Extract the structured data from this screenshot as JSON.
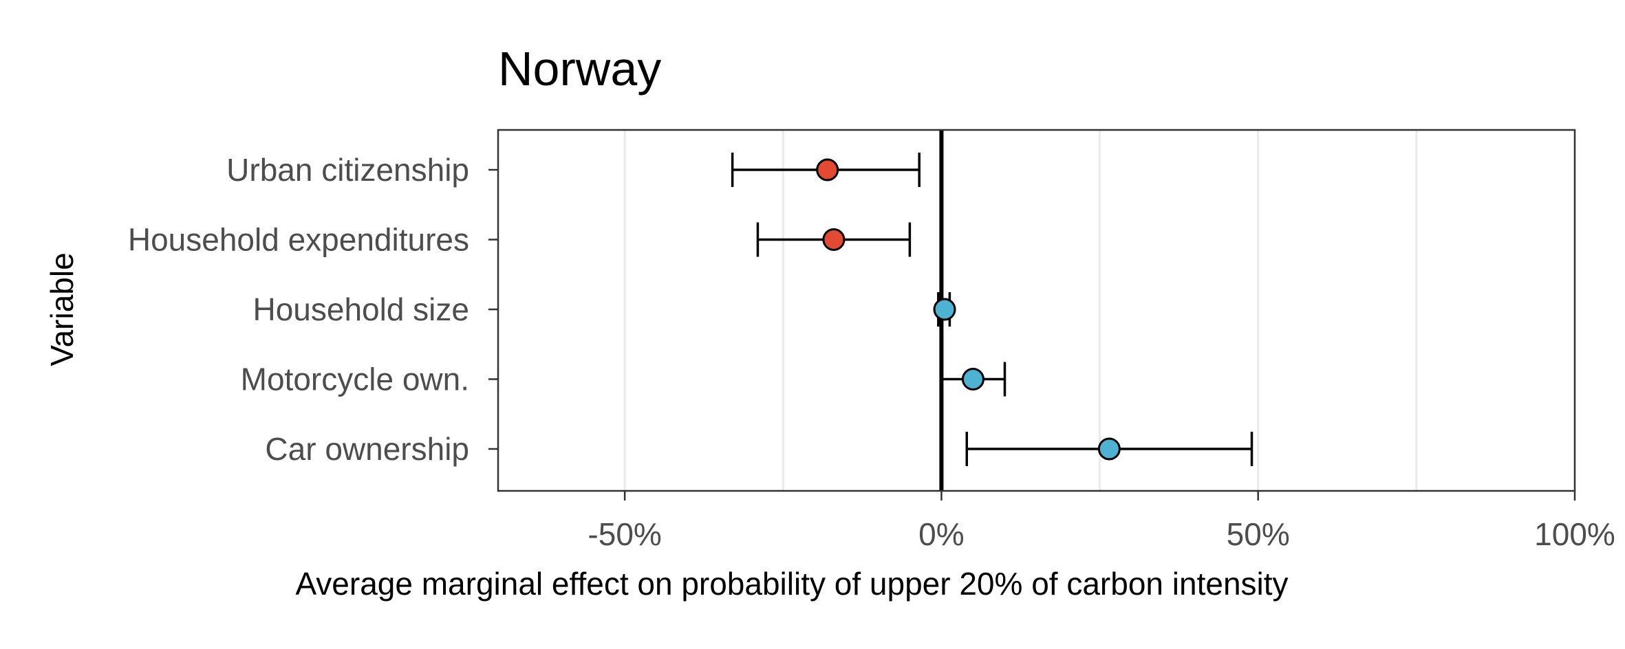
{
  "chart_data": {
    "type": "errorbar",
    "title": "Norway",
    "xlabel": "Average marginal effect on probability of upper 20% of carbon intensity",
    "ylabel": "Variable",
    "xlim": [
      -70,
      100
    ],
    "x_ticks": [
      -50,
      0,
      50,
      100
    ],
    "x_tick_labels": [
      "-50%",
      "0%",
      "50%",
      "100%"
    ],
    "x_minor_gridlines": [
      -25,
      25,
      75
    ],
    "grid": true,
    "legend": "none",
    "colors": {
      "negative": "#e34a33",
      "positive": "#4eb3d3",
      "zero_line": "#000000",
      "grid": "#ebebeb"
    },
    "points": [
      {
        "variable": "Urban citizenship",
        "estimate": -18,
        "lower": -33,
        "upper": -3.5,
        "color": "#e34a33"
      },
      {
        "variable": "Household expenditures",
        "estimate": -17,
        "lower": -29,
        "upper": -5,
        "color": "#e34a33"
      },
      {
        "variable": "Household size",
        "estimate": 0.5,
        "lower": -0.5,
        "upper": 1.3,
        "color": "#4eb3d3"
      },
      {
        "variable": "Motorcycle own.",
        "estimate": 5,
        "lower": 0,
        "upper": 10,
        "color": "#4eb3d3"
      },
      {
        "variable": "Car ownership",
        "estimate": 26.5,
        "lower": 4,
        "upper": 49,
        "color": "#4eb3d3"
      }
    ]
  }
}
